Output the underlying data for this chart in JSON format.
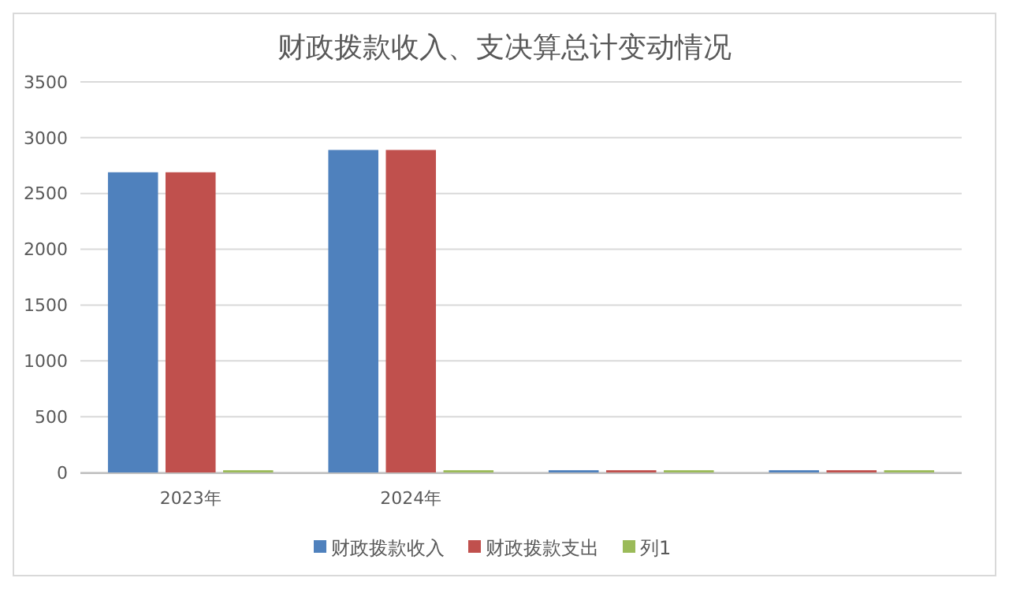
{
  "chart_data": {
    "type": "bar",
    "title": "财政拨款收入、支决算总计变动情况",
    "categories": [
      "2023年",
      "2024年",
      null,
      null
    ],
    "series": [
      {
        "name": "财政拨款收入",
        "color": "#4f81bd",
        "values": [
          2690,
          2890,
          20,
          20
        ]
      },
      {
        "name": "财政拨款支出",
        "color": "#c0504d",
        "values": [
          2690,
          2890,
          20,
          20
        ]
      },
      {
        "name": "列1",
        "color": "#9bbb59",
        "values": [
          20,
          20,
          20,
          20
        ]
      }
    ],
    "ylim": [
      0,
      3500
    ],
    "yticks": [
      0,
      500,
      1000,
      1500,
      2000,
      2500,
      3000,
      3500
    ],
    "grid": "y",
    "legend": "bottom"
  }
}
